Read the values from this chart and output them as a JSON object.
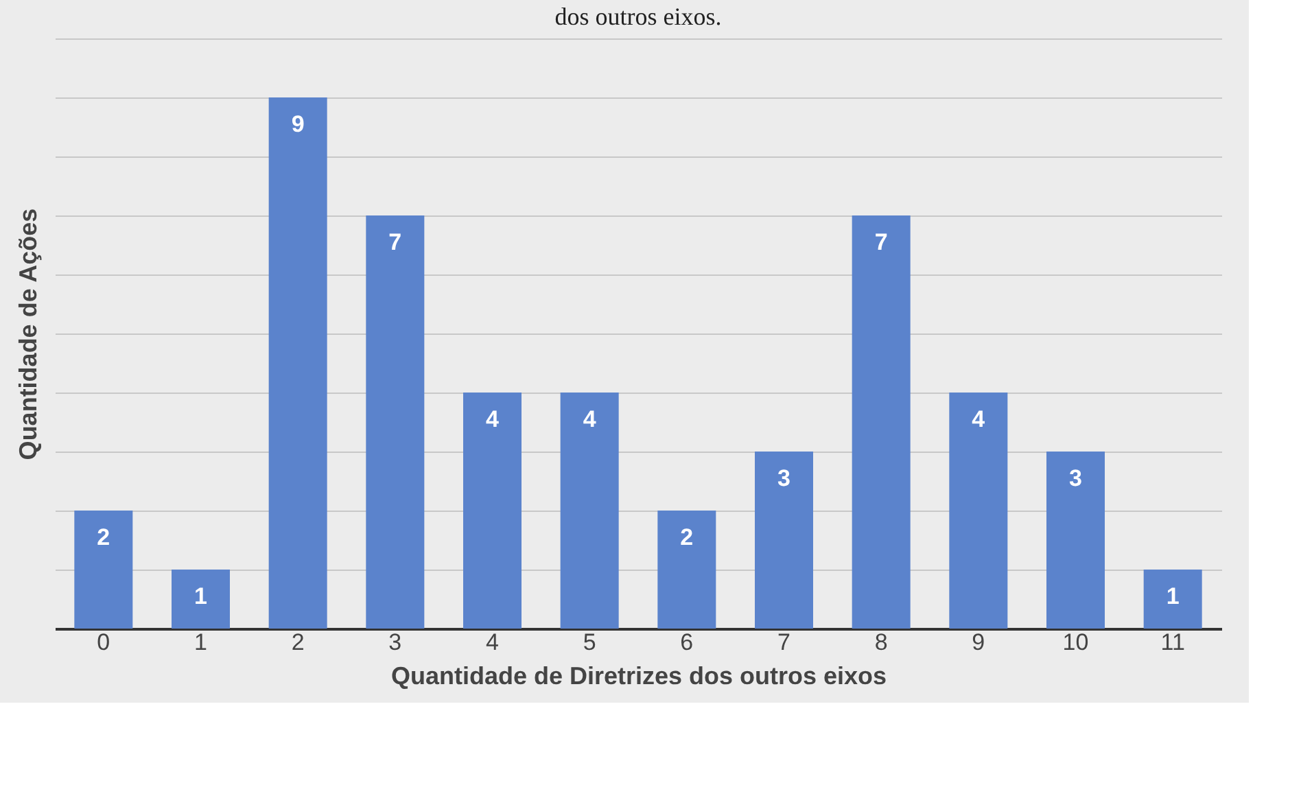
{
  "chart_data": {
    "type": "bar",
    "title": "dos outros eixos.",
    "xlabel": "Quantidade de Diretrizes dos outros eixos",
    "ylabel": "Quantidade de Ações",
    "categories": [
      "0",
      "1",
      "2",
      "3",
      "4",
      "5",
      "6",
      "7",
      "8",
      "9",
      "10",
      "11"
    ],
    "values": [
      2,
      1,
      9,
      7,
      4,
      4,
      2,
      3,
      7,
      4,
      3,
      1
    ],
    "color": "#5b83cc",
    "ylim": [
      0,
      10
    ],
    "yticks": [
      {
        "value": 0,
        "label": null
      },
      {
        "value": 1,
        "label": null
      },
      {
        "value": 2,
        "label": null
      },
      {
        "value": 3,
        "label": null
      },
      {
        "value": 4,
        "label": null
      },
      {
        "value": 5,
        "label": null
      },
      {
        "value": 6,
        "label": null
      },
      {
        "value": 7,
        "label": null
      },
      {
        "value": 8,
        "label": null
      },
      {
        "value": 9,
        "label": null
      },
      {
        "value": 10,
        "label": null
      }
    ],
    "grid": "y",
    "tick_labels": "x",
    "data_labels": true
  }
}
